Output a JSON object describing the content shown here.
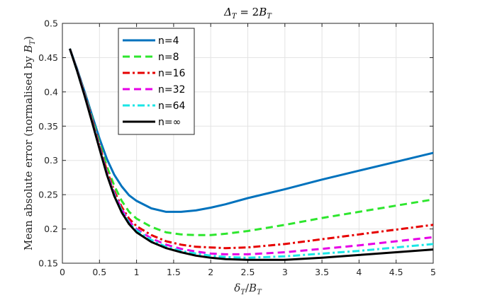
{
  "chart_data": {
    "type": "line",
    "title": "Δ_T = 2B_T",
    "xlabel": "δ_T / B_T",
    "ylabel": "Mean absolute error (normalised by B_T)",
    "xlim": [
      0,
      5
    ],
    "ylim": [
      0.15,
      0.5
    ],
    "xticks": [
      "0",
      "0.5",
      "1",
      "1.5",
      "2",
      "2.5",
      "3",
      "3.5",
      "4",
      "4.5",
      "5"
    ],
    "yticks": [
      "0.15",
      "0.2",
      "0.25",
      "0.3",
      "0.35",
      "0.4",
      "0.45",
      "0.5"
    ],
    "grid": true,
    "legend_position": "top-left",
    "x": [
      0.1,
      0.2,
      0.3,
      0.4,
      0.5,
      0.6,
      0.7,
      0.8,
      0.9,
      1.0,
      1.2,
      1.4,
      1.6,
      1.8,
      2.0,
      2.2,
      2.5,
      3.0,
      3.5,
      4.0,
      4.5,
      5.0
    ],
    "series": [
      {
        "name": "n=4",
        "color": "#0072BD",
        "dash": "solid",
        "values": [
          0.463,
          0.433,
          0.4,
          0.366,
          0.332,
          0.302,
          0.279,
          0.262,
          0.249,
          0.241,
          0.23,
          0.225,
          0.225,
          0.227,
          0.231,
          0.236,
          0.245,
          0.258,
          0.272,
          0.285,
          0.298,
          0.311
        ]
      },
      {
        "name": "n=8",
        "color": "#2EE62E",
        "dash": "dash",
        "values": [
          0.463,
          0.432,
          0.398,
          0.362,
          0.326,
          0.291,
          0.263,
          0.241,
          0.225,
          0.215,
          0.203,
          0.195,
          0.192,
          0.191,
          0.191,
          0.193,
          0.197,
          0.206,
          0.216,
          0.225,
          0.234,
          0.243
        ]
      },
      {
        "name": "n=16",
        "color": "#E60000",
        "dash": "dashdot",
        "values": [
          0.463,
          0.431,
          0.397,
          0.36,
          0.322,
          0.285,
          0.255,
          0.232,
          0.215,
          0.204,
          0.191,
          0.182,
          0.177,
          0.174,
          0.173,
          0.172,
          0.173,
          0.178,
          0.185,
          0.192,
          0.199,
          0.206
        ]
      },
      {
        "name": "n=32",
        "color": "#E600E6",
        "dash": "dash",
        "values": [
          0.463,
          0.431,
          0.396,
          0.358,
          0.32,
          0.282,
          0.252,
          0.229,
          0.211,
          0.2,
          0.186,
          0.177,
          0.171,
          0.167,
          0.164,
          0.163,
          0.163,
          0.166,
          0.171,
          0.176,
          0.182,
          0.188
        ]
      },
      {
        "name": "n=64",
        "color": "#1AE6E6",
        "dash": "dashdot",
        "values": [
          0.463,
          0.43,
          0.395,
          0.357,
          0.318,
          0.28,
          0.25,
          0.227,
          0.209,
          0.198,
          0.184,
          0.174,
          0.168,
          0.164,
          0.161,
          0.159,
          0.158,
          0.16,
          0.164,
          0.168,
          0.173,
          0.178
        ]
      },
      {
        "name": "n=∞",
        "color": "#000000",
        "dash": "solid",
        "values": [
          0.463,
          0.43,
          0.394,
          0.356,
          0.317,
          0.279,
          0.248,
          0.224,
          0.207,
          0.195,
          0.181,
          0.172,
          0.166,
          0.161,
          0.158,
          0.156,
          0.155,
          0.155,
          0.158,
          0.162,
          0.166,
          0.17
        ]
      }
    ]
  }
}
